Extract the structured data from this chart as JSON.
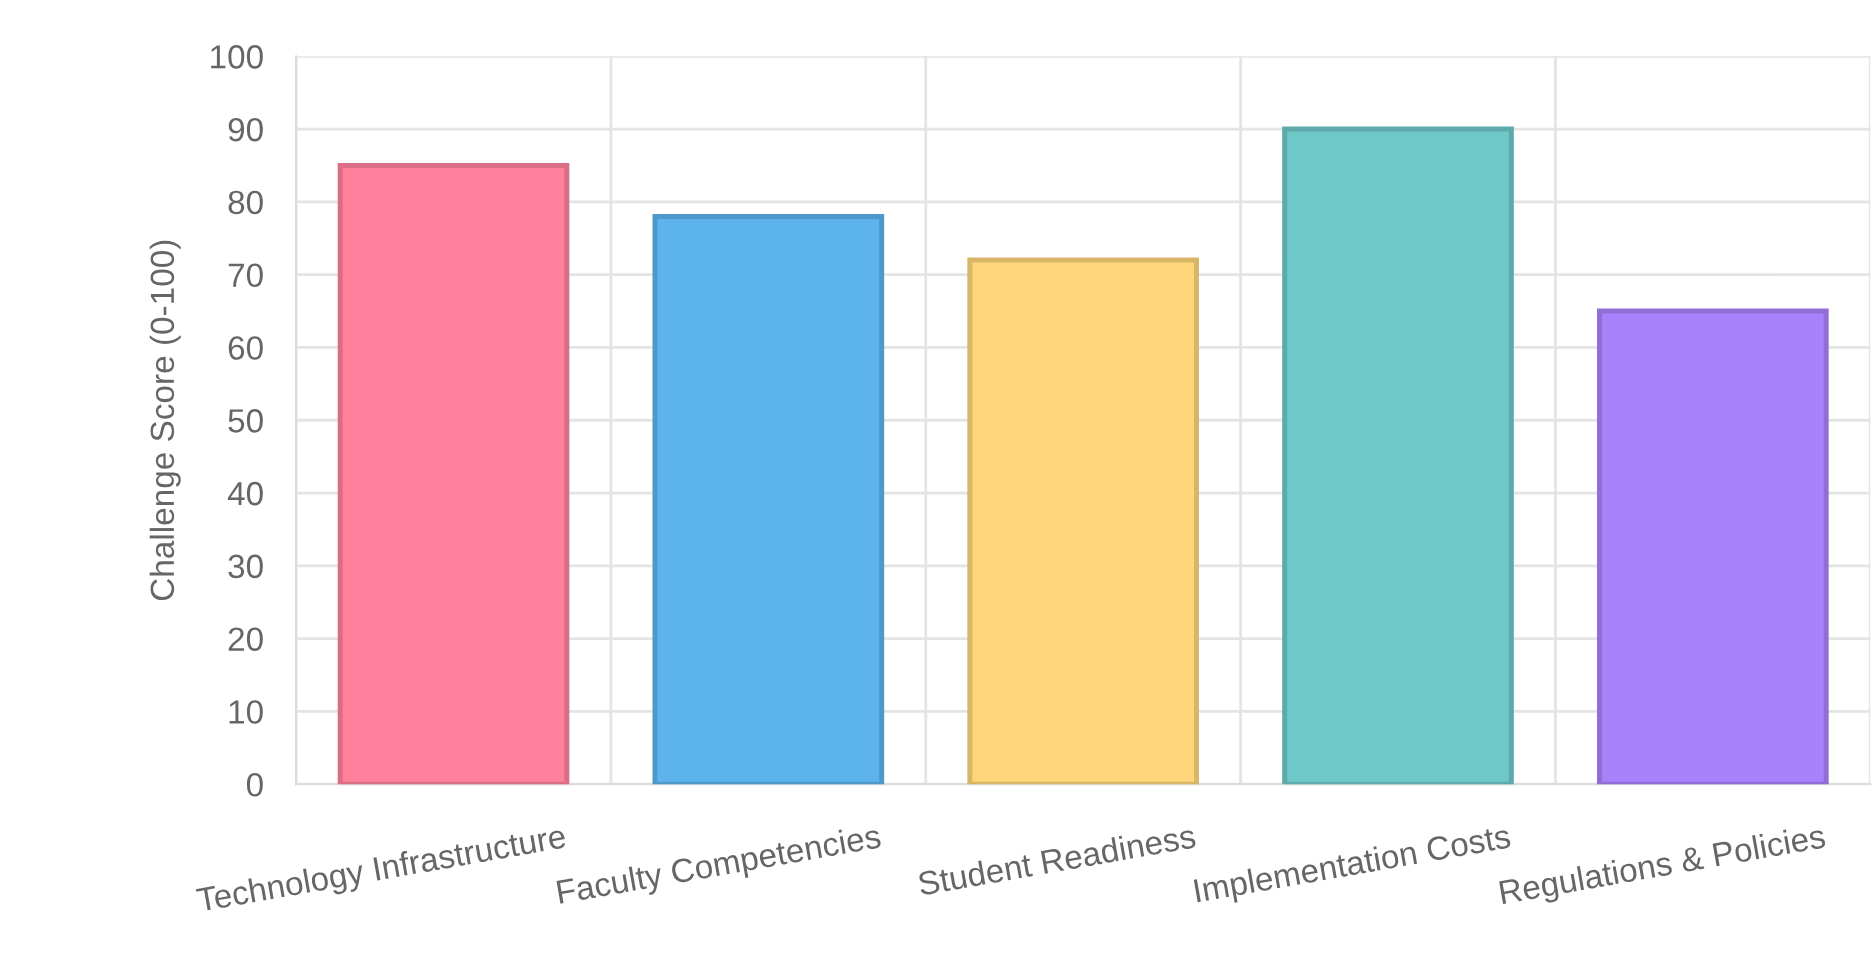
{
  "chart_data": {
    "type": "bar",
    "ylabel": "Challenge Score (0-100)",
    "categories": [
      "Technology Infrastructure",
      "Faculty Competencies",
      "Student Readiness",
      "Implementation Costs",
      "Regulations & Policies"
    ],
    "values": [
      85,
      78,
      72,
      90,
      65
    ],
    "colors": [
      "#ff819b",
      "#5db3ee",
      "#fed679",
      "#6fc8c8",
      "#a981fb"
    ],
    "ylim": [
      0,
      100
    ],
    "yticks": [
      0,
      10,
      20,
      30,
      40,
      50,
      60,
      70,
      80,
      90,
      100
    ],
    "grid": true
  }
}
